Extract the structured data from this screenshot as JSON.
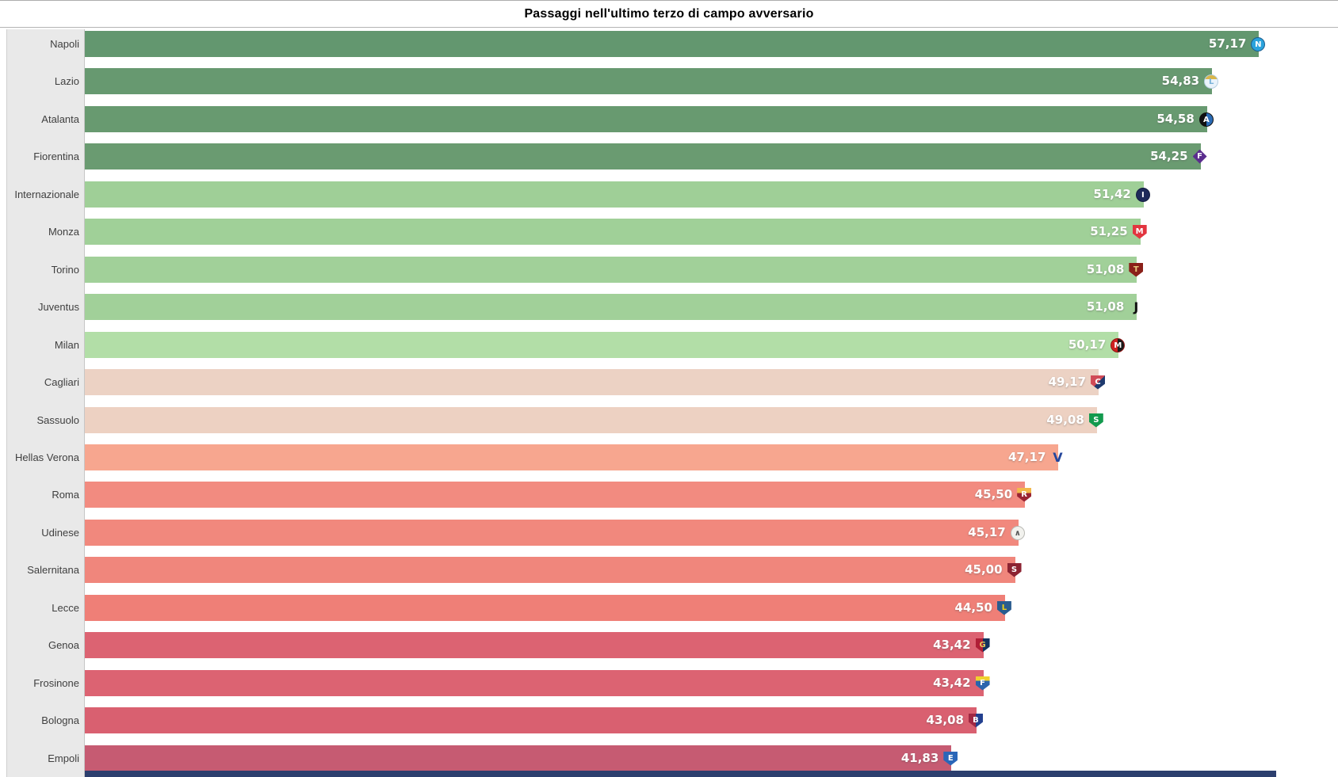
{
  "title_bar": {
    "title": "Passaggi nell'ultimo terzo di campo avversario"
  },
  "colors": {
    "panel_bg": "#e9e9e9",
    "panel_border": "#c6c6c6",
    "footer_strip": "#2c3f6e",
    "label_color": "#3f3f3f",
    "value_color": "#ffffff"
  },
  "chart_data": {
    "type": "bar",
    "orientation": "horizontal",
    "title": "Passaggi nell'ultimo terzo di campo avversario",
    "value_format": "decimal-comma",
    "axis_visible": false,
    "xlim": [
      0,
      60
    ],
    "legend": "none",
    "categories": [
      "Napoli",
      "Lazio",
      "Atalanta",
      "Fiorentina",
      "Internazionale",
      "Monza",
      "Torino",
      "Juventus",
      "Milan",
      "Cagliari",
      "Sassuolo",
      "Hellas Verona",
      "Roma",
      "Udinese",
      "Salernitana",
      "Lecce",
      "Genoa",
      "Frosinone",
      "Bologna",
      "Empoli"
    ],
    "values": [
      57.17,
      54.83,
      54.58,
      54.25,
      51.42,
      51.25,
      51.08,
      51.08,
      50.17,
      49.17,
      49.08,
      47.17,
      45.5,
      45.17,
      45.0,
      44.5,
      43.42,
      43.42,
      43.08,
      41.83
    ],
    "rows": [
      {
        "team": "Napoli",
        "slug": "napoli",
        "value": 57.17,
        "label": "57,17",
        "color": "#63976f",
        "logo": {
          "shape": "circle",
          "bg": "#2ba3dc",
          "border": "#1b5e8f",
          "fg": "#ffffff",
          "text": "N"
        }
      },
      {
        "team": "Lazio",
        "slug": "lazio",
        "value": 54.83,
        "label": "54,83",
        "color": "#679970",
        "logo": {
          "shape": "circle",
          "bg": "linear-gradient(180deg,#d9b64a 32%,#eaf3fb 32%)",
          "border": "#b6cfe0",
          "fg": "#7ab3d9",
          "text": "L"
        }
      },
      {
        "team": "Atalanta",
        "slug": "atalanta",
        "value": 54.58,
        "label": "54,58",
        "color": "#689a70",
        "logo": {
          "shape": "circle",
          "bg": "linear-gradient(90deg,#111111 50%,#2a6bb5 50%)",
          "border": "#111111",
          "fg": "#ffffff",
          "text": "A"
        }
      },
      {
        "team": "Fiorentina",
        "slug": "fiorentina",
        "value": 54.25,
        "label": "54,25",
        "color": "#6a9b71",
        "logo": {
          "shape": "diamond",
          "bg": "#5b2d8e",
          "border": "#ffffff",
          "fg": "#ffffff",
          "text": "F"
        }
      },
      {
        "team": "Internazionale",
        "slug": "internazionale",
        "value": 51.42,
        "label": "51,42",
        "color": "#9fcf97",
        "logo": {
          "shape": "circle",
          "bg": "#1e2a5a",
          "border": "#141d40",
          "fg": "#ffffff",
          "text": "I"
        }
      },
      {
        "team": "Monza",
        "slug": "monza",
        "value": 51.25,
        "label": "51,25",
        "color": "#a0d098",
        "logo": {
          "shape": "shield",
          "bg": "#e2353f",
          "border": "#ffffff",
          "fg": "#ffffff",
          "text": "M"
        }
      },
      {
        "team": "Torino",
        "slug": "torino",
        "value": 51.08,
        "label": "51,08",
        "color": "#a1d099",
        "logo": {
          "shape": "shield",
          "bg": "#8a2019",
          "border": "#5f1511",
          "fg": "#e8c87c",
          "text": "T"
        }
      },
      {
        "team": "Juventus",
        "slug": "juventus",
        "value": 51.08,
        "label": "51,08",
        "color": "#a1d099",
        "logo": {
          "shape": "text",
          "bg": "transparent",
          "border": "",
          "fg": "#111111",
          "text": "J"
        }
      },
      {
        "team": "Milan",
        "slug": "milan",
        "value": 50.17,
        "label": "50,17",
        "color": "#b2dea7",
        "logo": {
          "shape": "circle",
          "bg": "linear-gradient(90deg,#d02020 50%,#1a1a1a 50%)",
          "border": "#8e1414",
          "fg": "#ffffff",
          "text": "M"
        }
      },
      {
        "team": "Cagliari",
        "slug": "cagliari",
        "value": 49.17,
        "label": "49,17",
        "color": "#ecd2c4",
        "logo": {
          "shape": "shield",
          "bg": "linear-gradient(135deg,#d04a56 50%,#1e3a6e 50%)",
          "border": "#1e3a6e",
          "fg": "#ffffff",
          "text": "C"
        }
      },
      {
        "team": "Sassuolo",
        "slug": "sassuolo",
        "value": 49.08,
        "label": "49,08",
        "color": "#edd1c2",
        "logo": {
          "shape": "shield",
          "bg": "#139a4e",
          "border": "#0c6b37",
          "fg": "#ffffff",
          "text": "S"
        }
      },
      {
        "team": "Hellas Verona",
        "slug": "hellas-verona",
        "value": 47.17,
        "label": "47,17",
        "color": "#f7a68f",
        "logo": {
          "shape": "text",
          "bg": "transparent",
          "border": "",
          "fg": "#24469c",
          "text": "V"
        }
      },
      {
        "team": "Roma",
        "slug": "roma",
        "value": 45.5,
        "label": "45,50",
        "color": "#f28b80",
        "logo": {
          "shape": "shield",
          "bg": "linear-gradient(180deg,#f2b84b 35%,#9a2433 35%)",
          "border": "#9a2433",
          "fg": "#ffffff",
          "text": "R"
        }
      },
      {
        "team": "Udinese",
        "slug": "udinese",
        "value": 45.17,
        "label": "45,17",
        "color": "#f1887d",
        "logo": {
          "shape": "circle",
          "bg": "#f2f2ee",
          "border": "#b9b9b4",
          "fg": "#555555",
          "text": "∧"
        }
      },
      {
        "team": "Salernitana",
        "slug": "salernitana",
        "value": 45.0,
        "label": "45,00",
        "color": "#f0867c",
        "logo": {
          "shape": "shield",
          "bg": "#8c2332",
          "border": "#6b1a26",
          "fg": "#ffffff",
          "text": "S"
        }
      },
      {
        "team": "Lecce",
        "slug": "lecce",
        "value": 44.5,
        "label": "44,50",
        "color": "#ef7f77",
        "logo": {
          "shape": "shield",
          "bg": "#2a5c8f",
          "border": "#1d4268",
          "fg": "#f2d117",
          "text": "L"
        }
      },
      {
        "team": "Genoa",
        "slug": "genoa",
        "value": 43.42,
        "label": "43,42",
        "color": "#dc6372",
        "logo": {
          "shape": "shield",
          "bg": "linear-gradient(90deg,#b01e36 50%,#12325e 50%)",
          "border": "#12325e",
          "fg": "#e8c75a",
          "text": "G"
        }
      },
      {
        "team": "Frosinone",
        "slug": "frosinone",
        "value": 43.42,
        "label": "43,42",
        "color": "#dc6372",
        "logo": {
          "shape": "shield",
          "bg": "linear-gradient(180deg,#f0d22e 30%,#2a64ad 30%)",
          "border": "#2a64ad",
          "fg": "#ffffff",
          "text": "F"
        }
      },
      {
        "team": "Bologna",
        "slug": "bologna",
        "value": 43.08,
        "label": "43,08",
        "color": "#d96070",
        "logo": {
          "shape": "shield",
          "bg": "linear-gradient(90deg,#a02742 50%,#23408f 50%)",
          "border": "#23408f",
          "fg": "#ffffff",
          "text": "B"
        }
      },
      {
        "team": "Empoli",
        "slug": "empoli",
        "value": 41.83,
        "label": "41,83",
        "color": "#c65b72",
        "logo": {
          "shape": "shield",
          "bg": "#2a66b8",
          "border": "#16386b",
          "fg": "#ffffff",
          "text": "E"
        }
      }
    ]
  }
}
